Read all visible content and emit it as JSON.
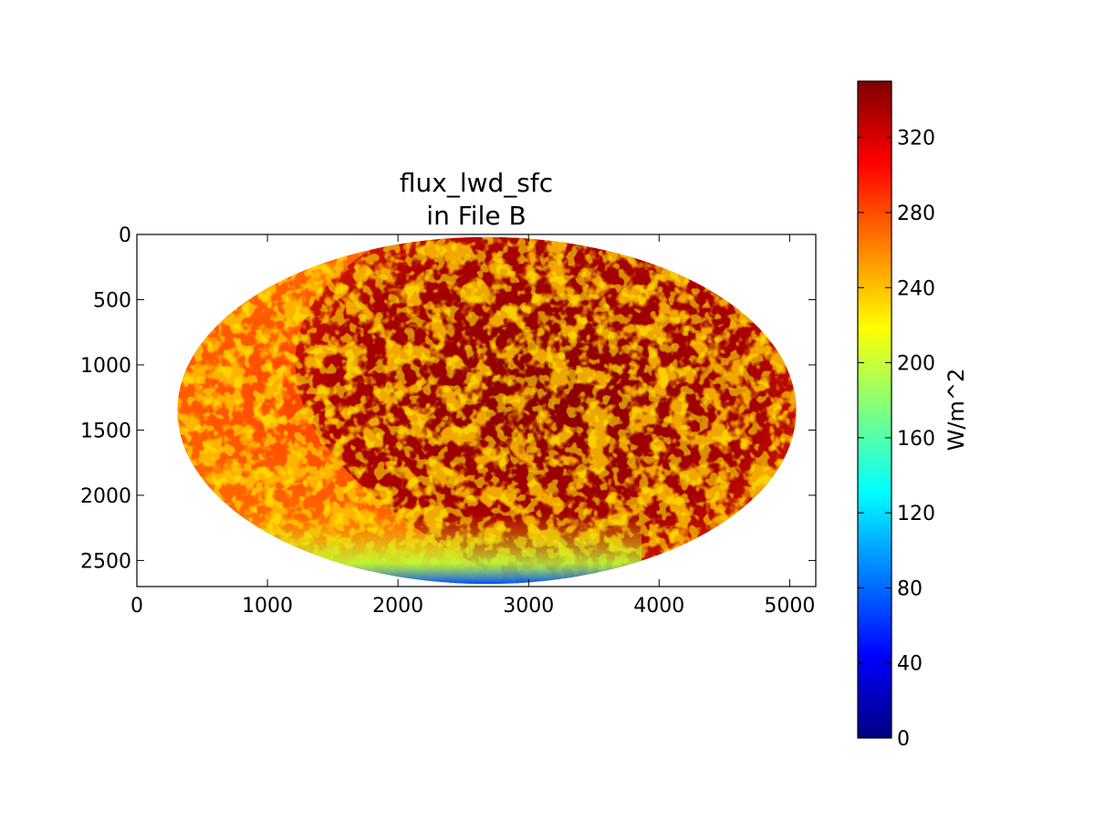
{
  "chart_data": {
    "type": "heatmap",
    "title_line1": "flux_lwd_sfc",
    "title_line2": "in File B",
    "xlabel": "",
    "ylabel": "",
    "xlim": [
      0,
      5200
    ],
    "ylim": [
      2700,
      0
    ],
    "y_inverted": true,
    "grid": false,
    "x_ticks": [
      0,
      1000,
      2000,
      3000,
      4000,
      5000
    ],
    "y_ticks": [
      0,
      500,
      1000,
      1500,
      2000,
      2500
    ],
    "colorbar": {
      "label": "W/m^2",
      "range": [
        0,
        350
      ],
      "ticks": [
        0,
        40,
        80,
        120,
        160,
        200,
        240,
        280,
        320
      ],
      "colormap": "jet",
      "colors": [
        "#00007f",
        "#0000ff",
        "#007fff",
        "#00ffff",
        "#7fff7f",
        "#ffff00",
        "#ff7f00",
        "#ff0000",
        "#7f0000"
      ]
    },
    "disk": {
      "center": [
        2680,
        1350
      ],
      "semi_axes": [
        2370,
        1330
      ]
    },
    "regions": [
      {
        "name": "western band",
        "dominant_value": 300
      },
      {
        "name": "eastern disk",
        "dominant_value": 340
      },
      {
        "name": "southern edge",
        "dominant_value": 100
      }
    ]
  }
}
